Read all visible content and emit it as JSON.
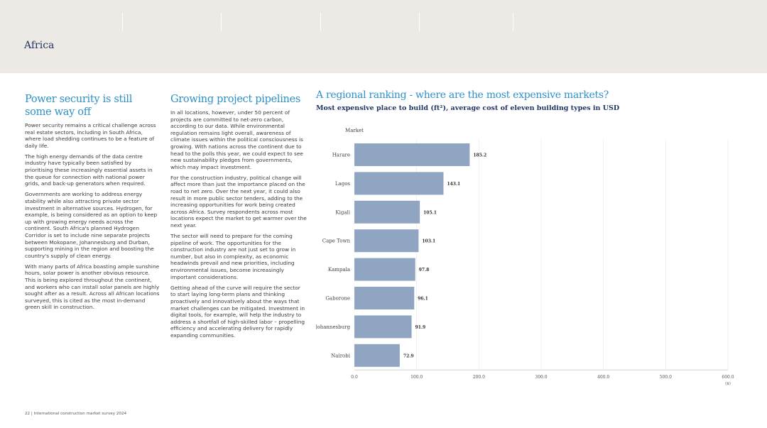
{
  "header": {
    "section_title": "Africa"
  },
  "left_column": {
    "heading": "Power security is still some way off",
    "paragraphs": [
      "Power security remains a critical challenge across real estate sectors, including in South Africa, where load shedding continues to be a feature of daily life.",
      "The high energy demands of the data centre industry have typically been satisfied by prioritising these increasingly essential assets in the queue for connection with national power grids, and back-up generators when required.",
      "Governments are working to address energy stability while also attracting private sector investment in alternative sources. Hydrogen, for example, is being considered as an option to keep up with growing energy needs across the continent. South Africa's planned Hydrogen Corridor is set to include nine separate projects between Mokopane, Johannesburg and Durban, supporting mining in the region and boosting the country's supply of clean energy.",
      "With many parts of Africa boasting ample sunshine hours, solar power is another obvious resource. This is being explored throughout the continent, and workers who can install solar panels are highly sought after as a result. Across all African locations surveyed, this is cited as the most in-demand green skill in construction."
    ]
  },
  "middle_column": {
    "heading": "Growing project pipelines",
    "paragraphs": [
      "In all locations, however, under 50 percent of projects are committed to net-zero carbon, according to our data. While environmental regulation remains light overall, awareness of climate issues within the political consciousness is growing. With nations across the continent due to head to the polls this year, we could expect to see new sustainability pledges from governments, which may impact investment.",
      "For the construction industry, political change will affect more than just the importance placed on the road to net zero. Over the next year, it could also result in more public sector tenders, adding to the increasing opportunities for work being created across Africa. Survey respondents across most locations expect the market to get warmer over the next year.",
      "The sector will need to prepare for the coming pipeline of work. The opportunities for the construction industry are not just set to grow in number, but also in complexity, as economic headwinds prevail and new priorities, including environmental issues, become increasingly important considerations.",
      "Getting ahead of the curve will require the sector to start laying long-term plans and thinking proactively and innovatively about the ways that market challenges can be mitigated. Investment in digital tools, for example, will help the industry to address a shortfall of high-skilled labor – propelling efficiency and accelerating delivery for rapidly expanding communities."
    ]
  },
  "chart_data": {
    "type": "bar",
    "orientation": "horizontal",
    "title": "A regional ranking - where are the most expensive markets?",
    "subtitle": "Most expensive place to build (ft²), average cost of eleven building types in USD",
    "ylabel": "Market",
    "xlabel": "($)",
    "categories": [
      "Harare",
      "Lagos",
      "Kigali",
      "Cape Town",
      "Kampala",
      "Gaborone",
      "Johannesburg",
      "Nairobi"
    ],
    "values": [
      185.2,
      143.1,
      105.1,
      103.1,
      97.8,
      96.1,
      91.9,
      72.9
    ],
    "value_labels": [
      "185.2",
      "143.1",
      "105.1",
      "103.1",
      "97.8",
      "96.1",
      "91.9",
      "72.9"
    ],
    "xlim": [
      0,
      600
    ],
    "xticks": [
      0,
      100,
      200,
      300,
      400,
      500,
      600
    ],
    "xtick_labels": [
      "0.0",
      "100.0",
      "200.0",
      "300.0",
      "400.0",
      "500.0",
      "600.0"
    ],
    "bar_color": "#8fa5c2",
    "grid": true
  },
  "footer": {
    "text": "22  |  International construction market survey 2024"
  }
}
